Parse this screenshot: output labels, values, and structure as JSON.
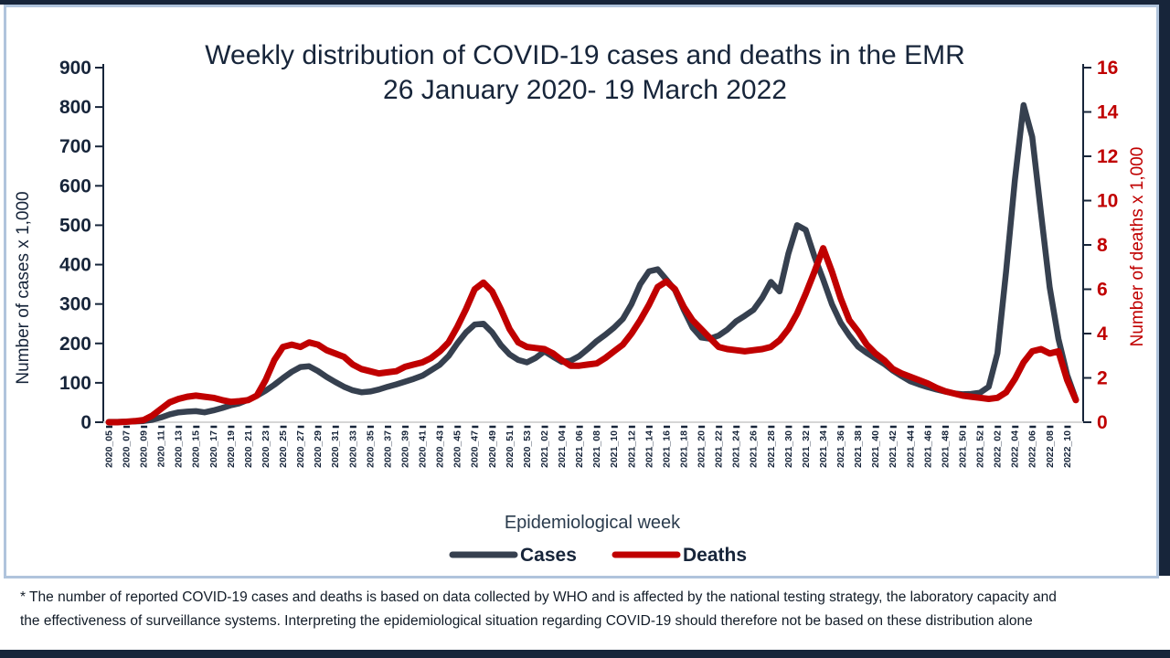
{
  "frame": {
    "bar_color": "#17253a",
    "panel_border_color": "#b0c4dc"
  },
  "chart": {
    "title_line1": "Weekly distribution of COVID-19 cases and deaths in the EMR",
    "title_line2": "26 January 2020- 19 March 2022",
    "left_axis_title": "Number of cases x 1,000",
    "right_axis_title": "Number of deaths x 1,000",
    "x_axis_title": "Epidemiological week",
    "legend": {
      "cases_label": "Cases",
      "deaths_label": "Deaths"
    }
  },
  "chart_data": {
    "type": "line",
    "title": "Weekly distribution of COVID-19 cases and deaths in the EMR 26 January 2020- 19 March 2022",
    "xlabel": "Epidemiological week",
    "ylabel_left": "Number of cases x 1,000",
    "ylabel_right": "Number of deaths x 1,000",
    "left_ylim": [
      0,
      900
    ],
    "left_ticks": [
      0,
      100,
      200,
      300,
      400,
      500,
      600,
      700,
      800,
      900
    ],
    "right_ylim": [
      0,
      16
    ],
    "right_ticks": [
      0,
      2,
      4,
      6,
      8,
      10,
      12,
      14,
      16
    ],
    "grid": false,
    "legend_position": "bottom",
    "x": [
      "2020_05",
      "2020_06",
      "2020_07",
      "2020_08",
      "2020_09",
      "2020_10",
      "2020_11",
      "2020_12",
      "2020_13",
      "2020_14",
      "2020_15",
      "2020_16",
      "2020_17",
      "2020_18",
      "2020_19",
      "2020_20",
      "2020_21",
      "2020_22",
      "2020_23",
      "2020_24",
      "2020_25",
      "2020_26",
      "2020_27",
      "2020_28",
      "2020_29",
      "2020_30",
      "2020_31",
      "2020_32",
      "2020_33",
      "2020_34",
      "2020_35",
      "2020_36",
      "2020_37",
      "2020_38",
      "2020_39",
      "2020_40",
      "2020_41",
      "2020_42",
      "2020_43",
      "2020_44",
      "2020_45",
      "2020_46",
      "2020_47",
      "2020_48",
      "2020_49",
      "2020_50",
      "2020_51",
      "2020_52",
      "2020_53",
      "2021_01",
      "2021_02",
      "2021_03",
      "2021_04",
      "2021_05",
      "2021_06",
      "2021_07",
      "2021_08",
      "2021_09",
      "2021_10",
      "2021_11",
      "2021_12",
      "2021_13",
      "2021_14",
      "2021_15",
      "2021_16",
      "2021_17",
      "2021_18",
      "2021_19",
      "2021_20",
      "2021_21",
      "2021_22",
      "2021_23",
      "2021_24",
      "2021_25",
      "2021_26",
      "2021_27",
      "2021_28",
      "2021_29",
      "2021_30",
      "2021_31",
      "2021_32",
      "2021_33",
      "2021_34",
      "2021_35",
      "2021_36",
      "2021_37",
      "2021_38",
      "2021_39",
      "2021_40",
      "2021_41",
      "2021_42",
      "2021_43",
      "2021_44",
      "2021_45",
      "2021_46",
      "2021_47",
      "2021_48",
      "2021_49",
      "2021_50",
      "2021_51",
      "2021_52",
      "2022_01",
      "2022_02",
      "2022_03",
      "2022_04",
      "2022_05",
      "2022_06",
      "2022_07",
      "2022_08",
      "2022_09",
      "2022_10",
      "2022_11"
    ],
    "x_tick_labels": [
      "2020_05",
      "2020_07",
      "2020_09",
      "2020_11",
      "2020_13",
      "2020_15",
      "2020_17",
      "2020_19",
      "2020_21",
      "2020_23",
      "2020_25",
      "2020_27",
      "2020_29",
      "2020_31",
      "2020_33",
      "2020_35",
      "2020_37",
      "2020_39",
      "2020_41",
      "2020_43",
      "2020_45",
      "2020_47",
      "2020_49",
      "2020_51",
      "2020_53",
      "2021_02",
      "2021_04",
      "2021_06",
      "2021_08",
      "2021_10",
      "2021_12",
      "2021_14",
      "2021_16",
      "2021_18",
      "2021_20",
      "2021_22",
      "2021_24",
      "2021_26",
      "2021_28",
      "2021_30",
      "2021_32",
      "2021_34",
      "2021_36",
      "2021_38",
      "2021_40",
      "2021_42",
      "2021_44",
      "2021_46",
      "2021_48",
      "2021_50",
      "2021_52",
      "2022_02",
      "2022_04",
      "2022_06",
      "2022_08",
      "2022_10"
    ],
    "series": [
      {
        "name": "Cases",
        "axis": "left",
        "color": "#36404f",
        "values": [
          1,
          1,
          1.5,
          2,
          3,
          6,
          12,
          20,
          25,
          27,
          28,
          25,
          30,
          36,
          43,
          48,
          57,
          67,
          80,
          95,
          112,
          128,
          140,
          142,
          130,
          115,
          102,
          90,
          81,
          76,
          78,
          83,
          90,
          96,
          103,
          110,
          118,
          132,
          146,
          168,
          200,
          228,
          248,
          250,
          228,
          196,
          172,
          158,
          152,
          163,
          180,
          166,
          153,
          156,
          168,
          186,
          206,
          222,
          240,
          262,
          300,
          350,
          383,
          388,
          362,
          335,
          285,
          240,
          215,
          212,
          220,
          235,
          256,
          270,
          285,
          316,
          356,
          332,
          428,
          500,
          488,
          420,
          362,
          300,
          253,
          220,
          192,
          176,
          162,
          148,
          131,
          117,
          104,
          96,
          89,
          83,
          78,
          73,
          71,
          72,
          75,
          90,
          175,
          383,
          615,
          805,
          724,
          530,
          342,
          212,
          120,
          58
        ]
      },
      {
        "name": "Deaths",
        "axis": "right",
        "color": "#c00000",
        "values": [
          0,
          0,
          0.02,
          0.05,
          0.1,
          0.3,
          0.6,
          0.9,
          1.05,
          1.15,
          1.2,
          1.15,
          1.1,
          1,
          0.92,
          0.95,
          1,
          1.2,
          1.9,
          2.8,
          3.4,
          3.5,
          3.4,
          3.6,
          3.5,
          3.25,
          3.1,
          2.95,
          2.6,
          2.4,
          2.3,
          2.2,
          2.25,
          2.3,
          2.5,
          2.6,
          2.7,
          2.9,
          3.2,
          3.6,
          4.3,
          5.1,
          6,
          6.3,
          5.9,
          5.1,
          4.2,
          3.6,
          3.4,
          3.35,
          3.3,
          3.1,
          2.8,
          2.55,
          2.55,
          2.6,
          2.65,
          2.9,
          3.2,
          3.5,
          4,
          4.6,
          5.3,
          6.1,
          6.35,
          6,
          5.2,
          4.6,
          4.2,
          3.8,
          3.4,
          3.3,
          3.25,
          3.2,
          3.25,
          3.3,
          3.4,
          3.7,
          4.2,
          4.9,
          5.8,
          6.8,
          7.85,
          6.8,
          5.6,
          4.6,
          4.1,
          3.5,
          3.1,
          2.8,
          2.4,
          2.2,
          2.05,
          1.9,
          1.75,
          1.55,
          1.4,
          1.3,
          1.2,
          1.15,
          1.1,
          1.05,
          1.1,
          1.35,
          1.95,
          2.7,
          3.2,
          3.3,
          3.1,
          3.2,
          1.9,
          1
        ]
      }
    ]
  },
  "footnote": {
    "lines": [
      "* The number of reported COVID-19 cases and deaths is based on data collected by WHO and is affected by the national testing strategy, the laboratory capacity and",
      "the effectiveness of surveillance systems. Interpreting the epidemiological situation regarding COVID-19 should therefore not be based on these distribution alone"
    ]
  }
}
